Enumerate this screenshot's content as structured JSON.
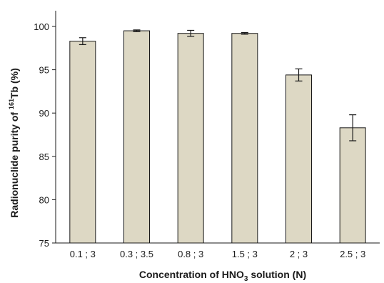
{
  "chart_data": {
    "type": "bar",
    "categories": [
      "0.1 ; 3",
      "0.3 ; 3.5",
      "0.8 ; 3",
      "1.5 ; 3",
      "2 ; 3",
      "2.5 ; 3"
    ],
    "values": [
      98.3,
      99.5,
      99.2,
      99.2,
      94.4,
      88.3
    ],
    "errors": [
      0.4,
      0.1,
      0.35,
      0.1,
      0.7,
      1.5
    ],
    "xlabel_parts": {
      "pre": "Concentration of HNO",
      "sub": "3",
      "post": " solution (N)"
    },
    "ylabel_parts": {
      "pre": "Radionuclide purity of ",
      "sup": "161",
      "post": "Tb (%)"
    },
    "ylim": [
      75,
      100
    ],
    "yticks": [
      "75",
      "80",
      "85",
      "90",
      "95",
      "100"
    ],
    "grid": false,
    "bar_color": "#ddd8c4",
    "bar_edge_color": "#1a1a1a"
  }
}
